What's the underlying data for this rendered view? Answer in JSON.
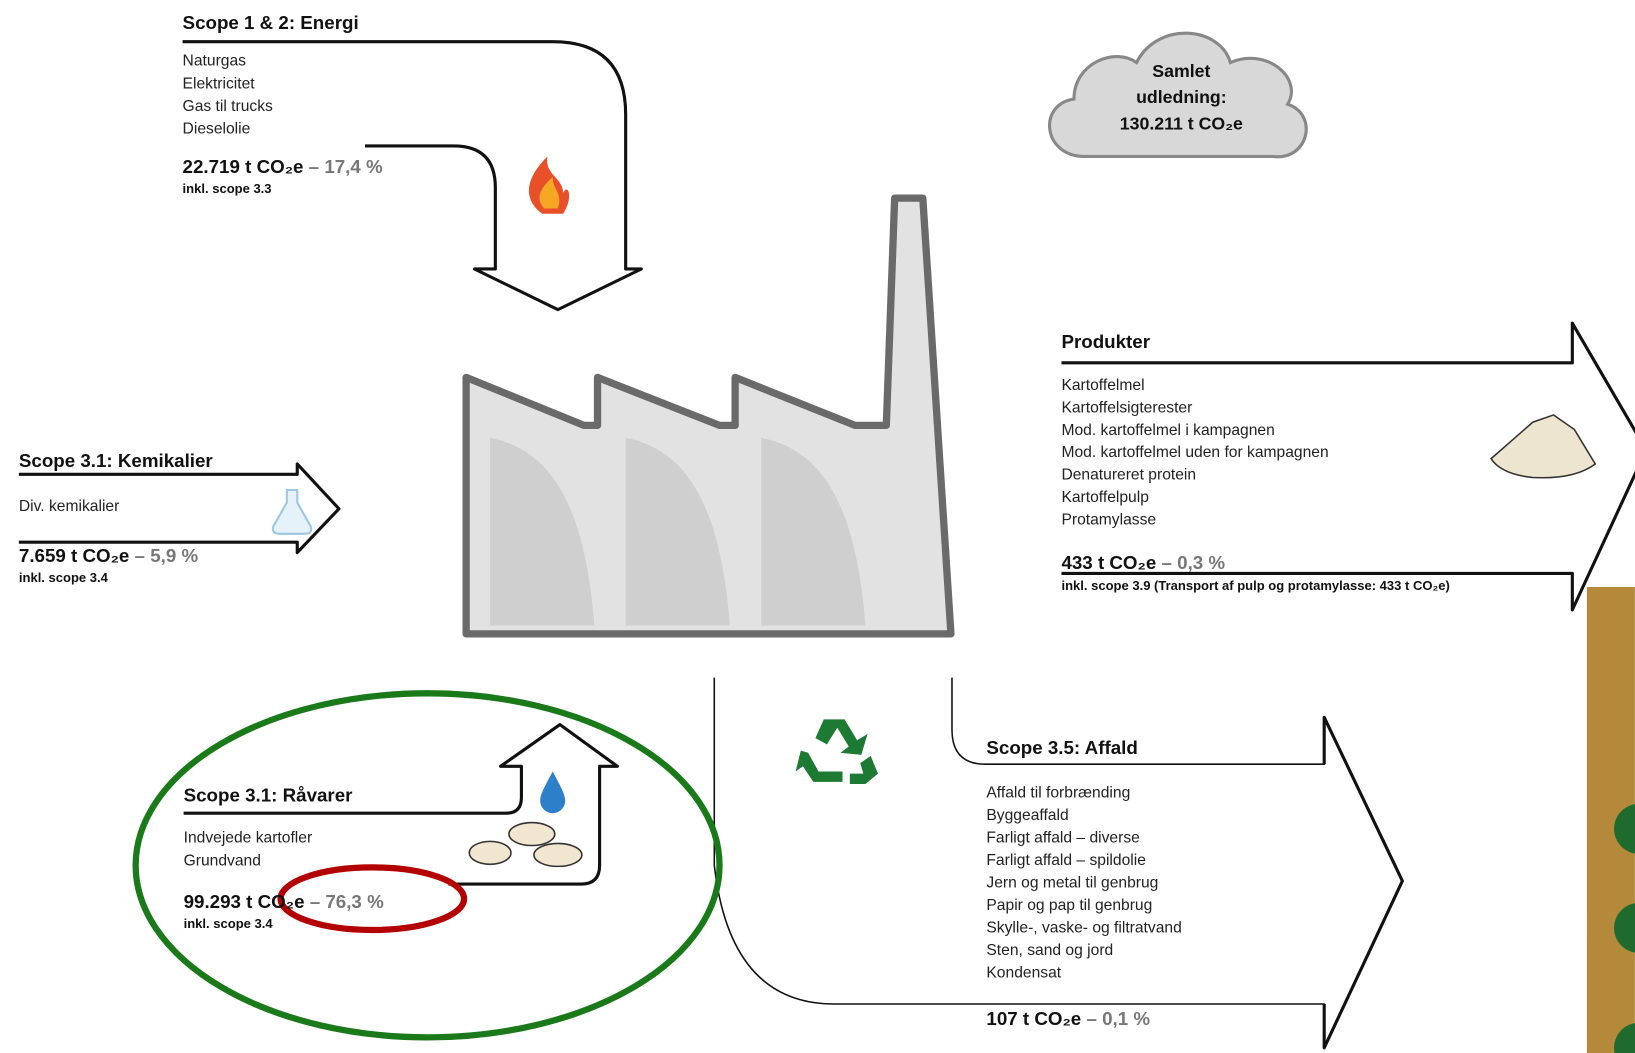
{
  "cloud": {
    "lines": [
      "Samlet",
      "udledning:",
      "130.211 t CO₂e"
    ]
  },
  "energy": {
    "title": "Scope 1 & 2: Energi",
    "items": [
      "Naturgas",
      "Elektricitet",
      "Gas til trucks",
      "Dieselolie"
    ],
    "emission": "22.719 t CO₂e",
    "share": "– 17,4 %",
    "note": "inkl. scope 3.3"
  },
  "chemicals": {
    "title": "Scope 3.1: Kemikalier",
    "items": [
      "Div. kemikalier"
    ],
    "emission": "7.659 t CO₂e",
    "share": "– 5,9 %",
    "note": "inkl. scope 3.4"
  },
  "products": {
    "title": "Produkter",
    "items": [
      "Kartoffelmel",
      "Kartoffelsigterester",
      "Mod. kartoffelmel i kampagnen",
      "Mod. kartoffelmel uden for kampagnen",
      "Denatureret protein",
      "Kartoffelpulp",
      "Protamylasse"
    ],
    "emission": "433 t CO₂e",
    "share": "– 0,3 %",
    "note": "inkl. scope 3.9 (Transport af pulp og protamylasse: 433 t CO₂e)"
  },
  "raw_materials": {
    "title": "Scope 3.1: Råvarer",
    "items": [
      "Indvejede kartofler",
      "Grundvand"
    ],
    "emission": "99.293 t CO₂e",
    "share": "– 76,3 %",
    "note": "inkl. scope 3.4"
  },
  "waste": {
    "title": "Scope 3.5: Affald",
    "items": [
      "Affald til forbrænding",
      "Byggeaffald",
      "Farligt affald – diverse",
      "Farligt affald – spildolie",
      "Jern og metal til genbrug",
      "Papir og pap til genbrug",
      "Skylle-, vaske- og filtratvand",
      "Sten, sand og jord",
      "Kondensat"
    ],
    "emission": "107 t CO₂e",
    "share": "– 0,1 %"
  }
}
